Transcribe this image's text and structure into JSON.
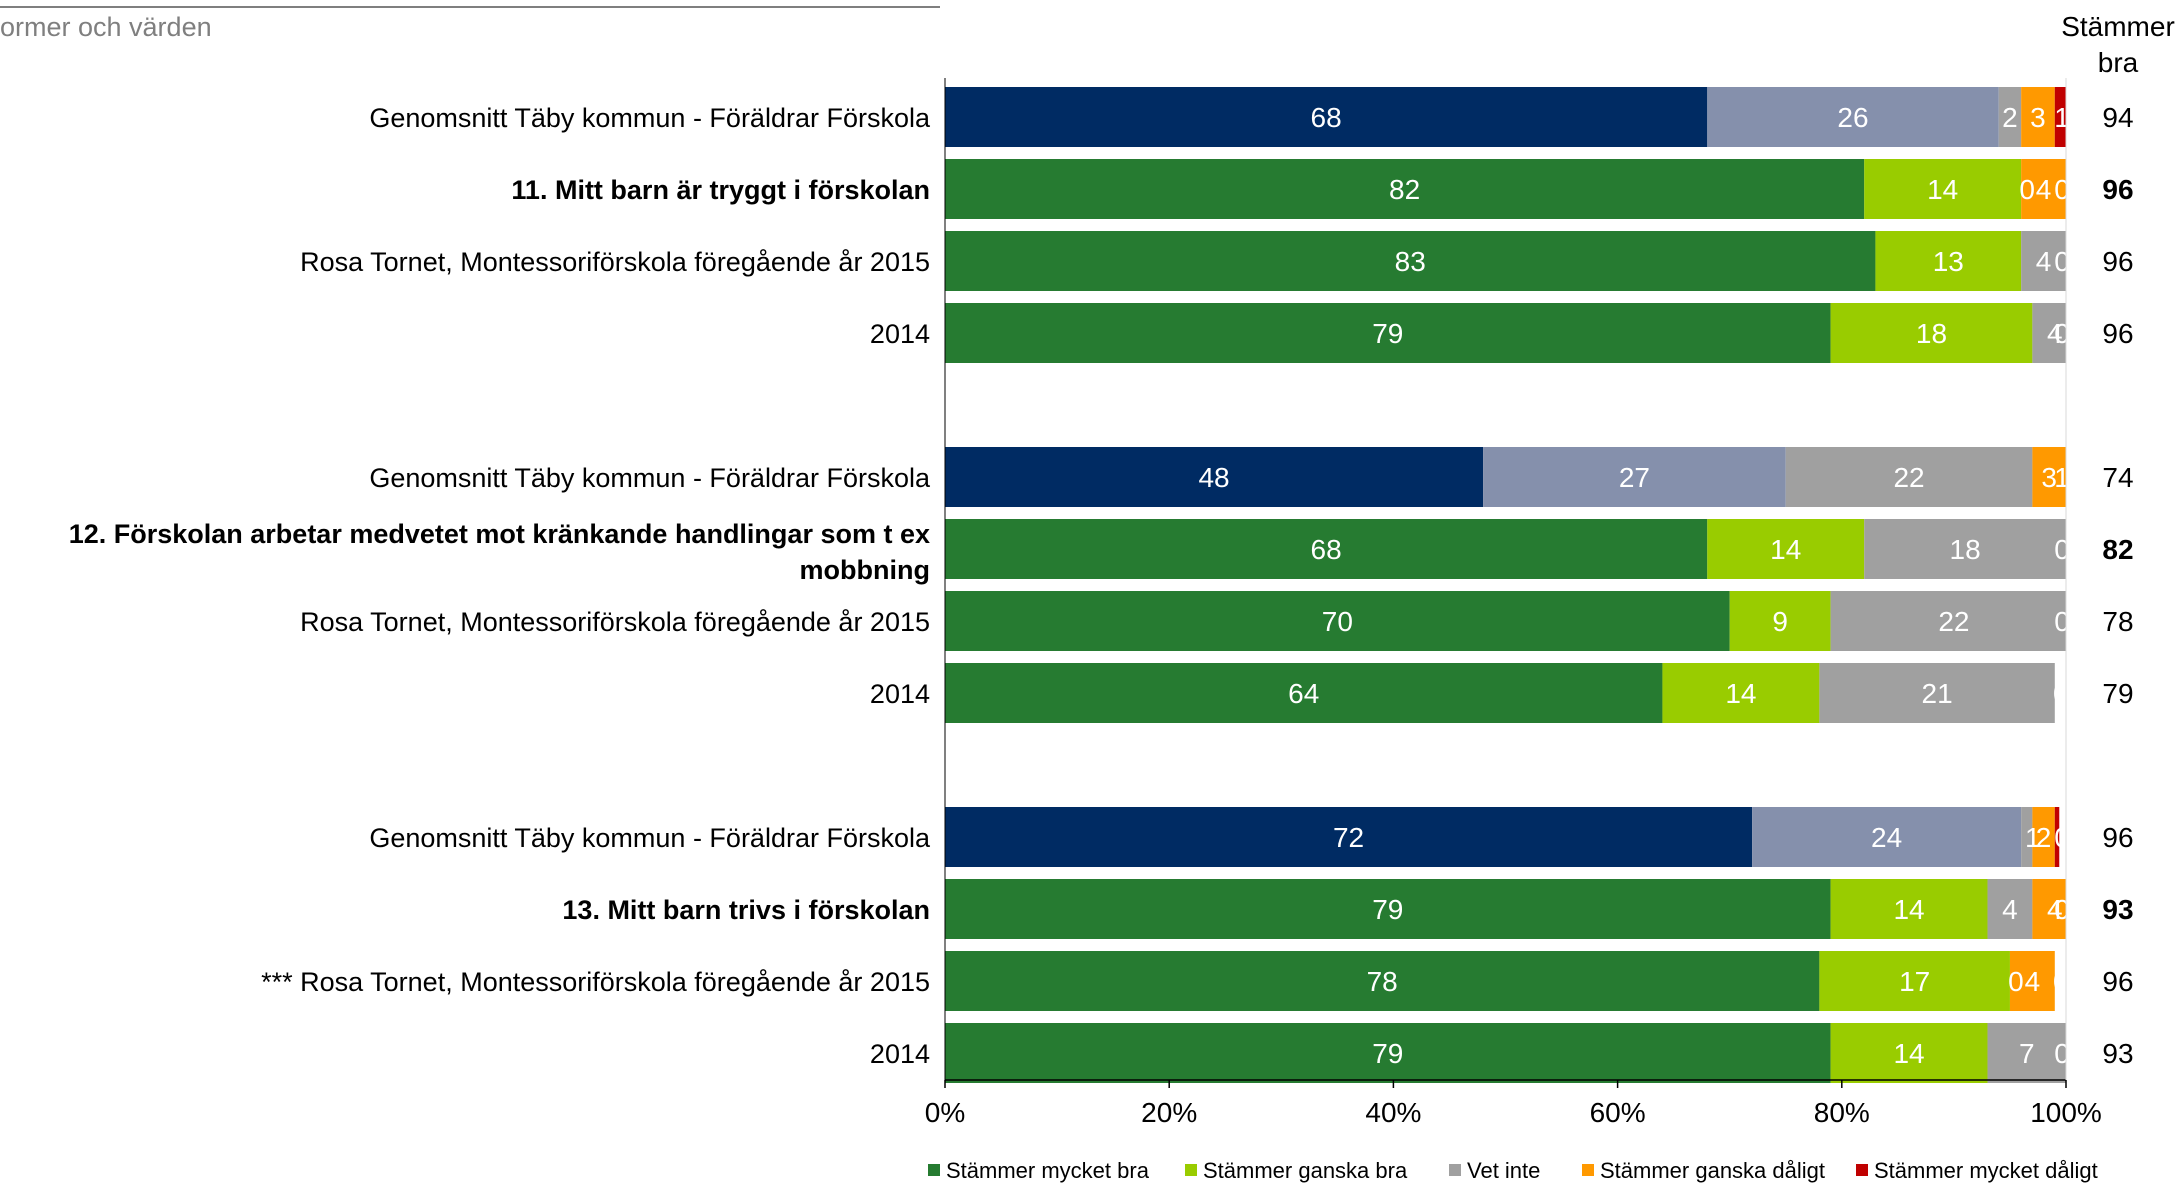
{
  "header": {
    "title_fragment": "ormer och värden"
  },
  "chart_data": {
    "type": "bar",
    "orientation": "horizontal",
    "stacked": true,
    "xlim": [
      0,
      100
    ],
    "x_ticks": [
      "0%",
      "20%",
      "40%",
      "60%",
      "80%",
      "100%"
    ],
    "right_column_header": [
      "Stämmer",
      "bra"
    ],
    "legend": [
      {
        "name": "Stämmer mycket bra",
        "color": "#267b31"
      },
      {
        "name": "Stämmer ganska bra",
        "color": "#99cc00"
      },
      {
        "name": "Vet inte",
        "color": "#a0a0a0"
      },
      {
        "name": "Stämmer ganska dåligt",
        "color": "#ff9900"
      },
      {
        "name": "Stämmer mycket dåligt",
        "color": "#c00000"
      }
    ],
    "benchmark_colors": [
      "#002b63",
      "#8590ac",
      "#a0a0a0",
      "#ff9900",
      "#c00000"
    ],
    "groups": [
      {
        "rows": [
          {
            "label": "Genomsnitt Täby kommun - Föräldrar Förskola",
            "bold": false,
            "benchmark": true,
            "values": [
              68,
              26,
              2,
              3,
              1
            ],
            "labels": [
              "68",
              "26",
              "2",
              "3",
              "1"
            ],
            "total": "94"
          },
          {
            "label": "11. Mitt barn är tryggt i förskolan",
            "bold": true,
            "benchmark": false,
            "values": [
              82,
              14,
              0,
              4,
              0
            ],
            "labels": [
              "82",
              "14",
              "0",
              "4",
              "0"
            ],
            "total": "96"
          },
          {
            "label": "Rosa Tornet, Montessoriförskola föregående år 2015",
            "bold": false,
            "benchmark": false,
            "values": [
              83,
              13,
              4,
              0,
              0
            ],
            "labels": [
              "83",
              "13",
              "4",
              "0",
              ""
            ],
            "total": "96"
          },
          {
            "label": "2014",
            "bold": false,
            "benchmark": false,
            "values": [
              79,
              18,
              4,
              0,
              0
            ],
            "labels": [
              "79",
              "18",
              "4",
              "0",
              ""
            ],
            "total": "96"
          }
        ]
      },
      {
        "rows": [
          {
            "label": "Genomsnitt Täby kommun - Föräldrar Förskola",
            "bold": false,
            "benchmark": true,
            "values": [
              48,
              27,
              22,
              3,
              1
            ],
            "labels": [
              "48",
              "27",
              "22",
              "3",
              "1"
            ],
            "total": "74"
          },
          {
            "label": "12. Förskolan arbetar medvetet mot kränkande handlingar som t ex mobbning",
            "label_lines": [
              "12. Förskolan arbetar medvetet mot kränkande handlingar som t ex",
              "mobbning"
            ],
            "bold": true,
            "benchmark": false,
            "values": [
              68,
              14,
              18,
              0,
              0
            ],
            "labels": [
              "68",
              "14",
              "18",
              "0",
              ""
            ],
            "total": "82"
          },
          {
            "label": "Rosa Tornet, Montessoriförskola föregående år 2015",
            "bold": false,
            "benchmark": false,
            "values": [
              70,
              9,
              22,
              0,
              0
            ],
            "labels": [
              "70",
              "9",
              "22",
              "0",
              ""
            ],
            "total": "78"
          },
          {
            "label": "2014",
            "bold": false,
            "benchmark": false,
            "values": [
              64,
              14,
              21,
              0,
              0
            ],
            "labels": [
              "64",
              "14",
              "21",
              "0",
              ""
            ],
            "total": "79"
          }
        ]
      },
      {
        "rows": [
          {
            "label": "Genomsnitt Täby kommun - Föräldrar Förskola",
            "bold": false,
            "benchmark": true,
            "values": [
              72,
              24,
              1,
              2,
              0.4
            ],
            "labels": [
              "72",
              "24",
              "1",
              "2",
              "0"
            ],
            "total": "96"
          },
          {
            "label": "13. Mitt barn trivs i förskolan",
            "bold": true,
            "benchmark": false,
            "values": [
              79,
              14,
              4,
              4,
              0
            ],
            "labels": [
              "79",
              "14",
              "4",
              "4",
              "0"
            ],
            "total": "93"
          },
          {
            "label": "*** Rosa Tornet, Montessoriförskola föregående år 2015",
            "bold": false,
            "benchmark": false,
            "values": [
              78,
              17,
              0,
              4,
              0
            ],
            "labels": [
              "78",
              "17",
              "0",
              "4",
              "0"
            ],
            "total": "96"
          },
          {
            "label": "2014",
            "bold": false,
            "benchmark": false,
            "values": [
              79,
              14,
              7,
              0,
              0
            ],
            "labels": [
              "79",
              "14",
              "7",
              "0",
              ""
            ],
            "total": "93"
          }
        ]
      }
    ]
  }
}
